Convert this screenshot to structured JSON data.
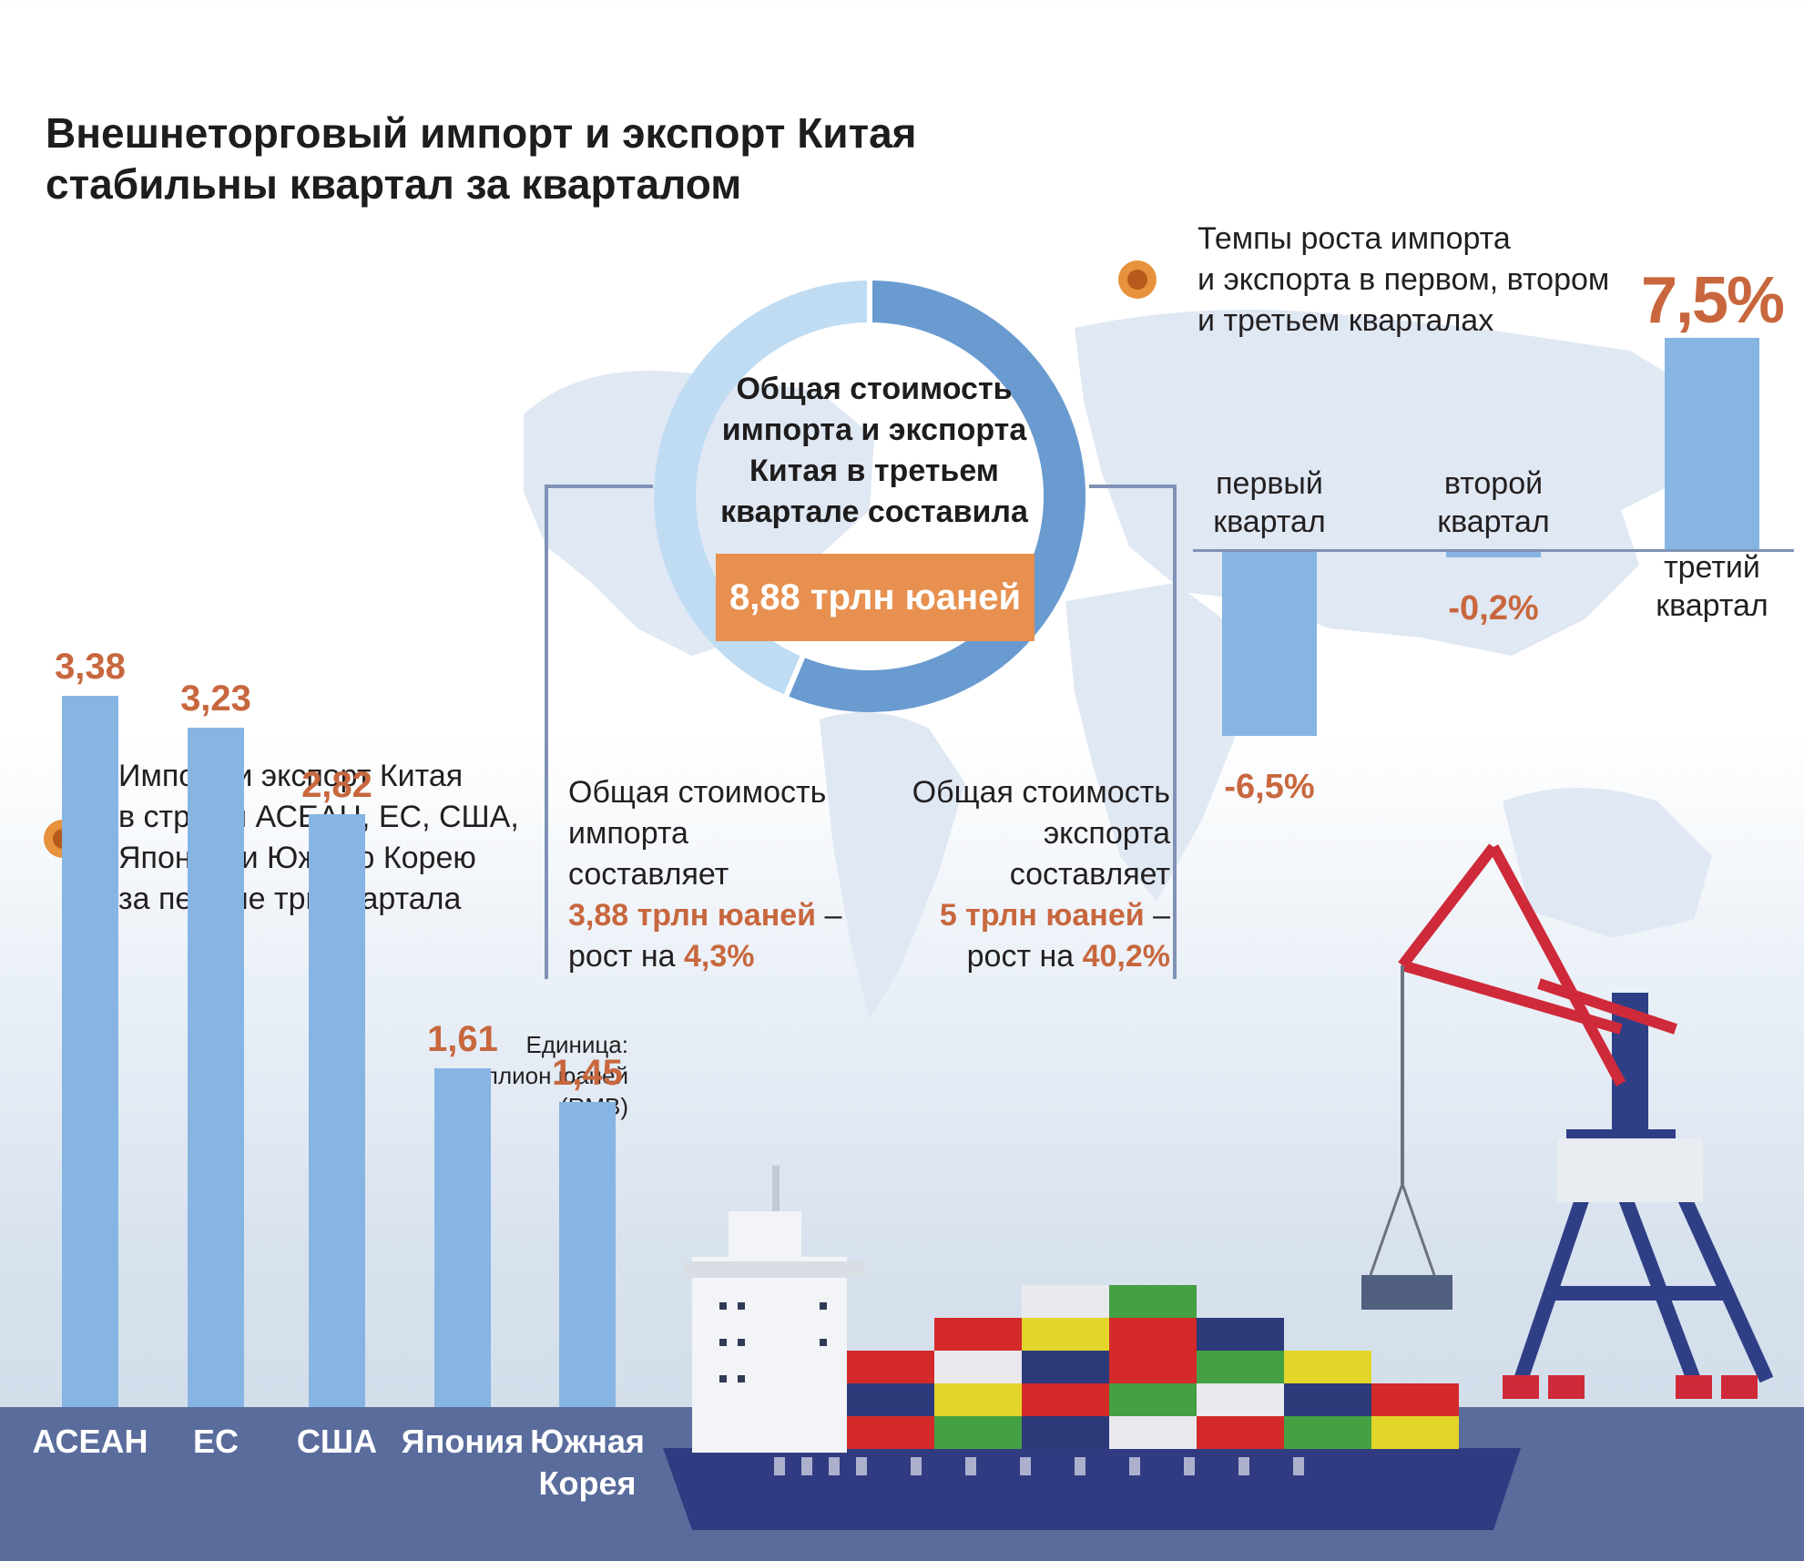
{
  "title": {
    "line1": "Внешнеторговый импорт и экспорт Китая",
    "line2": "стабильны квартал за кварталом"
  },
  "total": {
    "lines": [
      "Общая стоимость",
      "импорта и экспорта",
      "Китая в третьем",
      "квартале составила"
    ],
    "value": "8,88 трлн юаней"
  },
  "import_note": {
    "lines": [
      "Общая стоимость",
      "импорта",
      "составляет"
    ],
    "amount": "3,88 трлн юаней",
    "dash": " –",
    "growth_prefix": "рост на ",
    "growth": "4,3%"
  },
  "export_note": {
    "lines": [
      "Общая стоимость",
      "экспорта",
      "составляет"
    ],
    "amount": "5 трлн юаней",
    "dash": " –",
    "growth_prefix": "рост на ",
    "growth": "40,2%"
  },
  "growth_note": {
    "lines": [
      "Темпы роста импорта",
      "и экспорта в первом, втором",
      "и третьем кварталах"
    ]
  },
  "partners_note": {
    "lines": [
      "Импорт и экспорт Китая",
      "в страны АСЕАН, ЕС, США,",
      "Японию и Южную Корею",
      "за первые три квартала"
    ]
  },
  "unit": {
    "lines": [
      "Единица:",
      "триллион юаней",
      "(RMB)"
    ]
  },
  "colors": {
    "bar": "#86b5e3",
    "accent_orange": "#c8673e",
    "box_orange": "#e7904f",
    "ground": "#5a6c9c",
    "donut_dark": "#6a9bd0",
    "donut_light": "#bfdcf3"
  },
  "chart_data": [
    {
      "type": "pie",
      "title": "Общая стоимость импорта и экспорта Китая в третьем квартале составила 8,88 трлн юаней",
      "categories": [
        "импорт",
        "экспорт"
      ],
      "values": [
        3.88,
        5
      ],
      "colors": [
        "#bfdcf3",
        "#6a9bd0"
      ]
    },
    {
      "type": "bar",
      "title": "Темпы роста импорта и экспорта в первом, втором и третьем кварталах",
      "categories": [
        [
          "первый",
          "квартал"
        ],
        [
          "второй",
          "квартал"
        ],
        [
          "третий",
          "квартал"
        ]
      ],
      "values": [
        -6.5,
        -0.2,
        7.5
      ],
      "labels": [
        "-6,5%",
        "-0,2%",
        "7,5%"
      ],
      "ylim": [
        -7.5,
        7.5
      ]
    },
    {
      "type": "bar",
      "title": "Импорт и экспорт Китая в страны АСЕАН, ЕС, США, Японию и Южную Корею за первые три квартала",
      "categories": [
        [
          "АСЕАН"
        ],
        [
          "ЕС"
        ],
        [
          "США"
        ],
        [
          "Япония"
        ],
        [
          "Южная",
          "Корея"
        ]
      ],
      "values": [
        3.38,
        3.23,
        2.82,
        1.61,
        1.45
      ],
      "labels": [
        "3,38",
        "3,23",
        "2,82",
        "1,61",
        "1,45"
      ],
      "ylabel": "Единица: триллион юаней (RMB)",
      "ylim": [
        0,
        3.8
      ]
    }
  ]
}
